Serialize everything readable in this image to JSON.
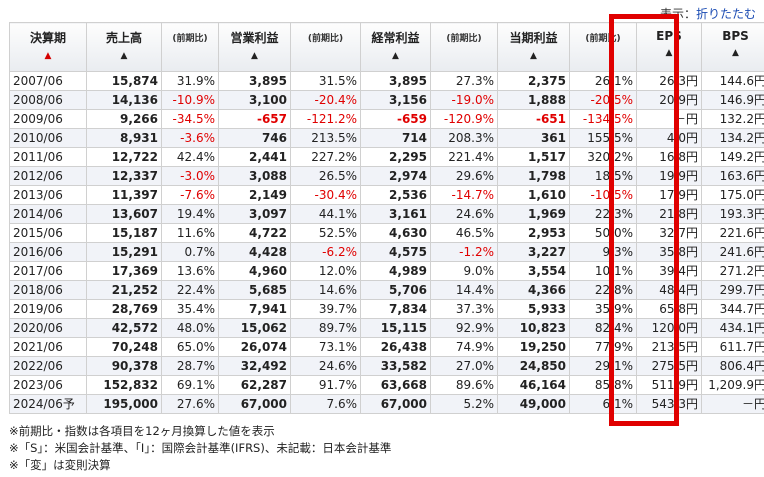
{
  "display_toggle": {
    "label": "表示：",
    "link": "折りたたむ"
  },
  "headers": [
    {
      "label": "決算期",
      "arrow": "▲",
      "arrow_red": true
    },
    {
      "label": "売上高",
      "arrow": "▲"
    },
    {
      "label": "(前期比)",
      "sub": true
    },
    {
      "label": "営業利益",
      "arrow": "▲"
    },
    {
      "label": "(前期比)",
      "sub": true
    },
    {
      "label": "経常利益",
      "arrow": "▲"
    },
    {
      "label": "(前期比)",
      "sub": true
    },
    {
      "label": "当期利益",
      "arrow": "▲"
    },
    {
      "label": "(前期比)",
      "sub": true
    },
    {
      "label": "EPS",
      "arrow": "▲"
    },
    {
      "label": "BPS",
      "arrow": "▲"
    }
  ],
  "rows": [
    {
      "period": "2007/06",
      "sales": "15,874",
      "sales_chg": "31.9%",
      "op": "3,895",
      "op_chg": "31.5%",
      "ord": "3,895",
      "ord_chg": "27.3%",
      "net": "2,375",
      "net_chg": "26.1%",
      "eps": "26.3円",
      "bps": "144.6円"
    },
    {
      "period": "2008/06",
      "sales": "14,136",
      "sales_chg": "-10.9%",
      "op": "3,100",
      "op_chg": "-20.4%",
      "ord": "3,156",
      "ord_chg": "-19.0%",
      "net": "1,888",
      "net_chg": "-20.5%",
      "eps": "20.9円",
      "bps": "146.9円"
    },
    {
      "period": "2009/06",
      "sales": "9,266",
      "sales_chg": "-34.5%",
      "op": "-657",
      "op_chg": "-121.2%",
      "ord": "-659",
      "ord_chg": "-120.9%",
      "net": "-651",
      "net_chg": "-134.5%",
      "eps": "－円",
      "bps": "132.2円"
    },
    {
      "period": "2010/06",
      "sales": "8,931",
      "sales_chg": "-3.6%",
      "op": "746",
      "op_chg": "213.5%",
      "ord": "714",
      "ord_chg": "208.3%",
      "net": "361",
      "net_chg": "155.5%",
      "eps": "4.0円",
      "bps": "134.2円"
    },
    {
      "period": "2011/06",
      "sales": "12,722",
      "sales_chg": "42.4%",
      "op": "2,441",
      "op_chg": "227.2%",
      "ord": "2,295",
      "ord_chg": "221.4%",
      "net": "1,517",
      "net_chg": "320.2%",
      "eps": "16.8円",
      "bps": "149.2円"
    },
    {
      "period": "2012/06",
      "sales": "12,337",
      "sales_chg": "-3.0%",
      "op": "3,088",
      "op_chg": "26.5%",
      "ord": "2,974",
      "ord_chg": "29.6%",
      "net": "1,798",
      "net_chg": "18.5%",
      "eps": "19.9円",
      "bps": "163.6円"
    },
    {
      "period": "2013/06",
      "sales": "11,397",
      "sales_chg": "-7.6%",
      "op": "2,149",
      "op_chg": "-30.4%",
      "ord": "2,536",
      "ord_chg": "-14.7%",
      "net": "1,610",
      "net_chg": "-10.5%",
      "eps": "17.9円",
      "bps": "175.0円"
    },
    {
      "period": "2014/06",
      "sales": "13,607",
      "sales_chg": "19.4%",
      "op": "3,097",
      "op_chg": "44.1%",
      "ord": "3,161",
      "ord_chg": "24.6%",
      "net": "1,969",
      "net_chg": "22.3%",
      "eps": "21.8円",
      "bps": "193.3円"
    },
    {
      "period": "2015/06",
      "sales": "15,187",
      "sales_chg": "11.6%",
      "op": "4,722",
      "op_chg": "52.5%",
      "ord": "4,630",
      "ord_chg": "46.5%",
      "net": "2,953",
      "net_chg": "50.0%",
      "eps": "32.7円",
      "bps": "221.6円"
    },
    {
      "period": "2016/06",
      "sales": "15,291",
      "sales_chg": "0.7%",
      "op": "4,428",
      "op_chg": "-6.2%",
      "ord": "4,575",
      "ord_chg": "-1.2%",
      "net": "3,227",
      "net_chg": "9.3%",
      "eps": "35.8円",
      "bps": "241.6円"
    },
    {
      "period": "2017/06",
      "sales": "17,369",
      "sales_chg": "13.6%",
      "op": "4,960",
      "op_chg": "12.0%",
      "ord": "4,989",
      "ord_chg": "9.0%",
      "net": "3,554",
      "net_chg": "10.1%",
      "eps": "39.4円",
      "bps": "271.2円"
    },
    {
      "period": "2018/06",
      "sales": "21,252",
      "sales_chg": "22.4%",
      "op": "5,685",
      "op_chg": "14.6%",
      "ord": "5,706",
      "ord_chg": "14.4%",
      "net": "4,366",
      "net_chg": "22.8%",
      "eps": "48.4円",
      "bps": "299.7円"
    },
    {
      "period": "2019/06",
      "sales": "28,769",
      "sales_chg": "35.4%",
      "op": "7,941",
      "op_chg": "39.7%",
      "ord": "7,834",
      "ord_chg": "37.3%",
      "net": "5,933",
      "net_chg": "35.9%",
      "eps": "65.8円",
      "bps": "344.7円"
    },
    {
      "period": "2020/06",
      "sales": "42,572",
      "sales_chg": "48.0%",
      "op": "15,062",
      "op_chg": "89.7%",
      "ord": "15,115",
      "ord_chg": "92.9%",
      "net": "10,823",
      "net_chg": "82.4%",
      "eps": "120.0円",
      "bps": "434.1円"
    },
    {
      "period": "2021/06",
      "sales": "70,248",
      "sales_chg": "65.0%",
      "op": "26,074",
      "op_chg": "73.1%",
      "ord": "26,438",
      "ord_chg": "74.9%",
      "net": "19,250",
      "net_chg": "77.9%",
      "eps": "213.5円",
      "bps": "611.7円"
    },
    {
      "period": "2022/06",
      "sales": "90,378",
      "sales_chg": "28.7%",
      "op": "32,492",
      "op_chg": "24.6%",
      "ord": "33,582",
      "ord_chg": "27.0%",
      "net": "24,850",
      "net_chg": "29.1%",
      "eps": "275.5円",
      "bps": "806.4円"
    },
    {
      "period": "2023/06",
      "sales": "152,832",
      "sales_chg": "69.1%",
      "op": "62,287",
      "op_chg": "91.7%",
      "ord": "63,668",
      "ord_chg": "89.6%",
      "net": "46,164",
      "net_chg": "85.8%",
      "eps": "511.9円",
      "bps": "1,209.9円"
    },
    {
      "period": "2024/06予",
      "sales": "195,000",
      "sales_chg": "27.6%",
      "op": "67,000",
      "op_chg": "7.6%",
      "ord": "67,000",
      "ord_chg": "5.2%",
      "net": "49,000",
      "net_chg": "6.1%",
      "eps": "543.3円",
      "bps": "－円"
    }
  ],
  "notes": [
    "※前期比・指数は各項目を12ヶ月換算した値を表示",
    "※「S」：米国会計基準、「I」：国際会計基準(IFRS)、未記載：日本会計基準",
    "※「変」は変則決算"
  ],
  "colors": {
    "negative": "#e00000",
    "highlight_box": "#e00000",
    "link": "#1a4bb3",
    "row_alt": "#f1f3f8"
  }
}
